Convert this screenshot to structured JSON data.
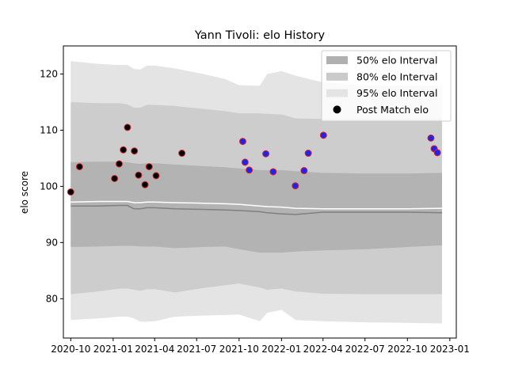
{
  "chart_data": {
    "type": "line",
    "title": "Yann Tivoli: elo History",
    "xlabel": "",
    "ylabel": "elo score",
    "x_axis_type": "date",
    "xlim": [
      "2020-09-15",
      "2023-01-15"
    ],
    "ylim": [
      73,
      125
    ],
    "x_ticks": [
      "2020-10",
      "2021-01",
      "2021-04",
      "2021-07",
      "2021-10",
      "2022-01",
      "2022-04",
      "2022-07",
      "2022-10",
      "2023-01"
    ],
    "y_ticks": [
      80,
      90,
      100,
      110,
      120
    ],
    "grid": false,
    "legend_position": "top-right",
    "legend": [
      {
        "label": "50% elo Interval",
        "kind": "band",
        "color": "#b0b0b0"
      },
      {
        "label": "80% elo Interval",
        "kind": "band",
        "color": "#cacaca"
      },
      {
        "label": "95% elo Interval",
        "kind": "band",
        "color": "#e4e4e4"
      },
      {
        "label": "Post Match elo",
        "kind": "marker",
        "color": "#000000"
      }
    ],
    "colors": {
      "band95": "#e4e4e4",
      "band80": "#cdcdcd",
      "band50": "#b3b3b3",
      "mean_line": "#ffffff",
      "median_line": "#808080",
      "marker_red_edge": "#d62728",
      "marker_blue_fill": "#2222ee"
    },
    "bands": {
      "dates": [
        "2020-10-01",
        "2020-12-01",
        "2021-01-15",
        "2021-02-01",
        "2021-02-15",
        "2021-03-01",
        "2021-03-15",
        "2021-04-01",
        "2021-05-15",
        "2021-07-15",
        "2021-09-01",
        "2021-10-01",
        "2021-11-15",
        "2021-12-01",
        "2022-01-01",
        "2022-02-01",
        "2022-04-01",
        "2022-07-01",
        "2022-10-01",
        "2022-12-15"
      ],
      "upper95": [
        122.3,
        121.8,
        121.6,
        121.6,
        120.9,
        120.8,
        121.5,
        121.5,
        121.0,
        120.0,
        119.1,
        118.0,
        117.9,
        120.0,
        120.5,
        119.7,
        118.5,
        118.0,
        118.0,
        118.0
      ],
      "upper80": [
        115.0,
        114.8,
        114.8,
        114.6,
        114.0,
        114.0,
        114.5,
        114.5,
        114.3,
        113.8,
        113.4,
        113.0,
        113.0,
        112.9,
        112.8,
        112.1,
        112.0,
        112.0,
        112.0,
        112.0
      ],
      "upper50": [
        104.3,
        104.4,
        104.4,
        104.3,
        104.1,
        104.0,
        104.1,
        104.1,
        103.9,
        103.6,
        103.4,
        103.2,
        102.9,
        102.9,
        102.9,
        102.7,
        102.4,
        102.3,
        102.3,
        102.4
      ],
      "lower50": [
        89.2,
        89.3,
        89.4,
        89.4,
        89.4,
        89.3,
        89.3,
        89.3,
        89.0,
        89.2,
        89.3,
        88.8,
        88.2,
        88.2,
        88.2,
        88.4,
        88.6,
        88.8,
        89.2,
        89.5
      ],
      "lower80": [
        80.8,
        81.3,
        81.8,
        81.8,
        81.6,
        81.4,
        81.7,
        81.7,
        81.1,
        81.9,
        82.4,
        82.7,
        82.0,
        81.6,
        81.8,
        81.3,
        80.9,
        80.8,
        80.8,
        80.8
      ],
      "lower95": [
        76.2,
        76.5,
        76.8,
        76.8,
        76.5,
        75.9,
        75.9,
        76.0,
        76.8,
        77.0,
        77.1,
        77.2,
        76.0,
        77.5,
        78.0,
        76.2,
        76.0,
        75.8,
        75.7,
        75.6
      ],
      "mean": [
        97.2,
        97.3,
        97.3,
        97.3,
        97.1,
        97.1,
        97.2,
        97.2,
        97.1,
        97.0,
        96.9,
        96.8,
        96.5,
        96.4,
        96.3,
        96.1,
        96.0,
        96.0,
        96.0,
        96.1
      ],
      "median": [
        96.5,
        96.5,
        96.6,
        96.6,
        96.0,
        96.0,
        96.2,
        96.2,
        96.0,
        95.9,
        95.8,
        95.7,
        95.5,
        95.3,
        95.1,
        95.0,
        95.4,
        95.4,
        95.4,
        95.3
      ]
    },
    "series": [
      {
        "points": [
          {
            "x": "2020-10-01",
            "y": 99.0
          },
          {
            "x": "2020-10-20",
            "y": 103.5
          },
          {
            "x": "2021-01-04",
            "y": 101.4
          },
          {
            "x": "2021-01-14",
            "y": 104.0
          },
          {
            "x": "2021-01-23",
            "y": 106.5
          },
          {
            "x": "2021-02-01",
            "y": 110.5
          },
          {
            "x": "2021-02-16",
            "y": 106.3
          },
          {
            "x": "2021-02-25",
            "y": 102.0
          },
          {
            "x": "2021-03-11",
            "y": 100.3
          },
          {
            "x": "2021-03-20",
            "y": 103.5
          },
          {
            "x": "2021-04-04",
            "y": 101.9
          },
          {
            "x": "2021-05-30",
            "y": 105.9
          }
        ],
        "fill": "#000000",
        "edge": "#d62728"
      },
      {
        "points": [
          {
            "x": "2021-10-09",
            "y": 108.0
          },
          {
            "x": "2021-10-14",
            "y": 104.3
          },
          {
            "x": "2021-10-23",
            "y": 102.9
          },
          {
            "x": "2021-11-28",
            "y": 105.8
          },
          {
            "x": "2021-12-14",
            "y": 102.6
          },
          {
            "x": "2022-01-31",
            "y": 100.1
          },
          {
            "x": "2022-02-19",
            "y": 102.8
          },
          {
            "x": "2022-02-28",
            "y": 105.9
          },
          {
            "x": "2022-04-02",
            "y": 109.1
          },
          {
            "x": "2022-11-21",
            "y": 108.6
          },
          {
            "x": "2022-11-28",
            "y": 106.7
          },
          {
            "x": "2022-12-05",
            "y": 106.0
          }
        ],
        "fill": "#2222ee",
        "edge": "#d62728"
      }
    ]
  }
}
